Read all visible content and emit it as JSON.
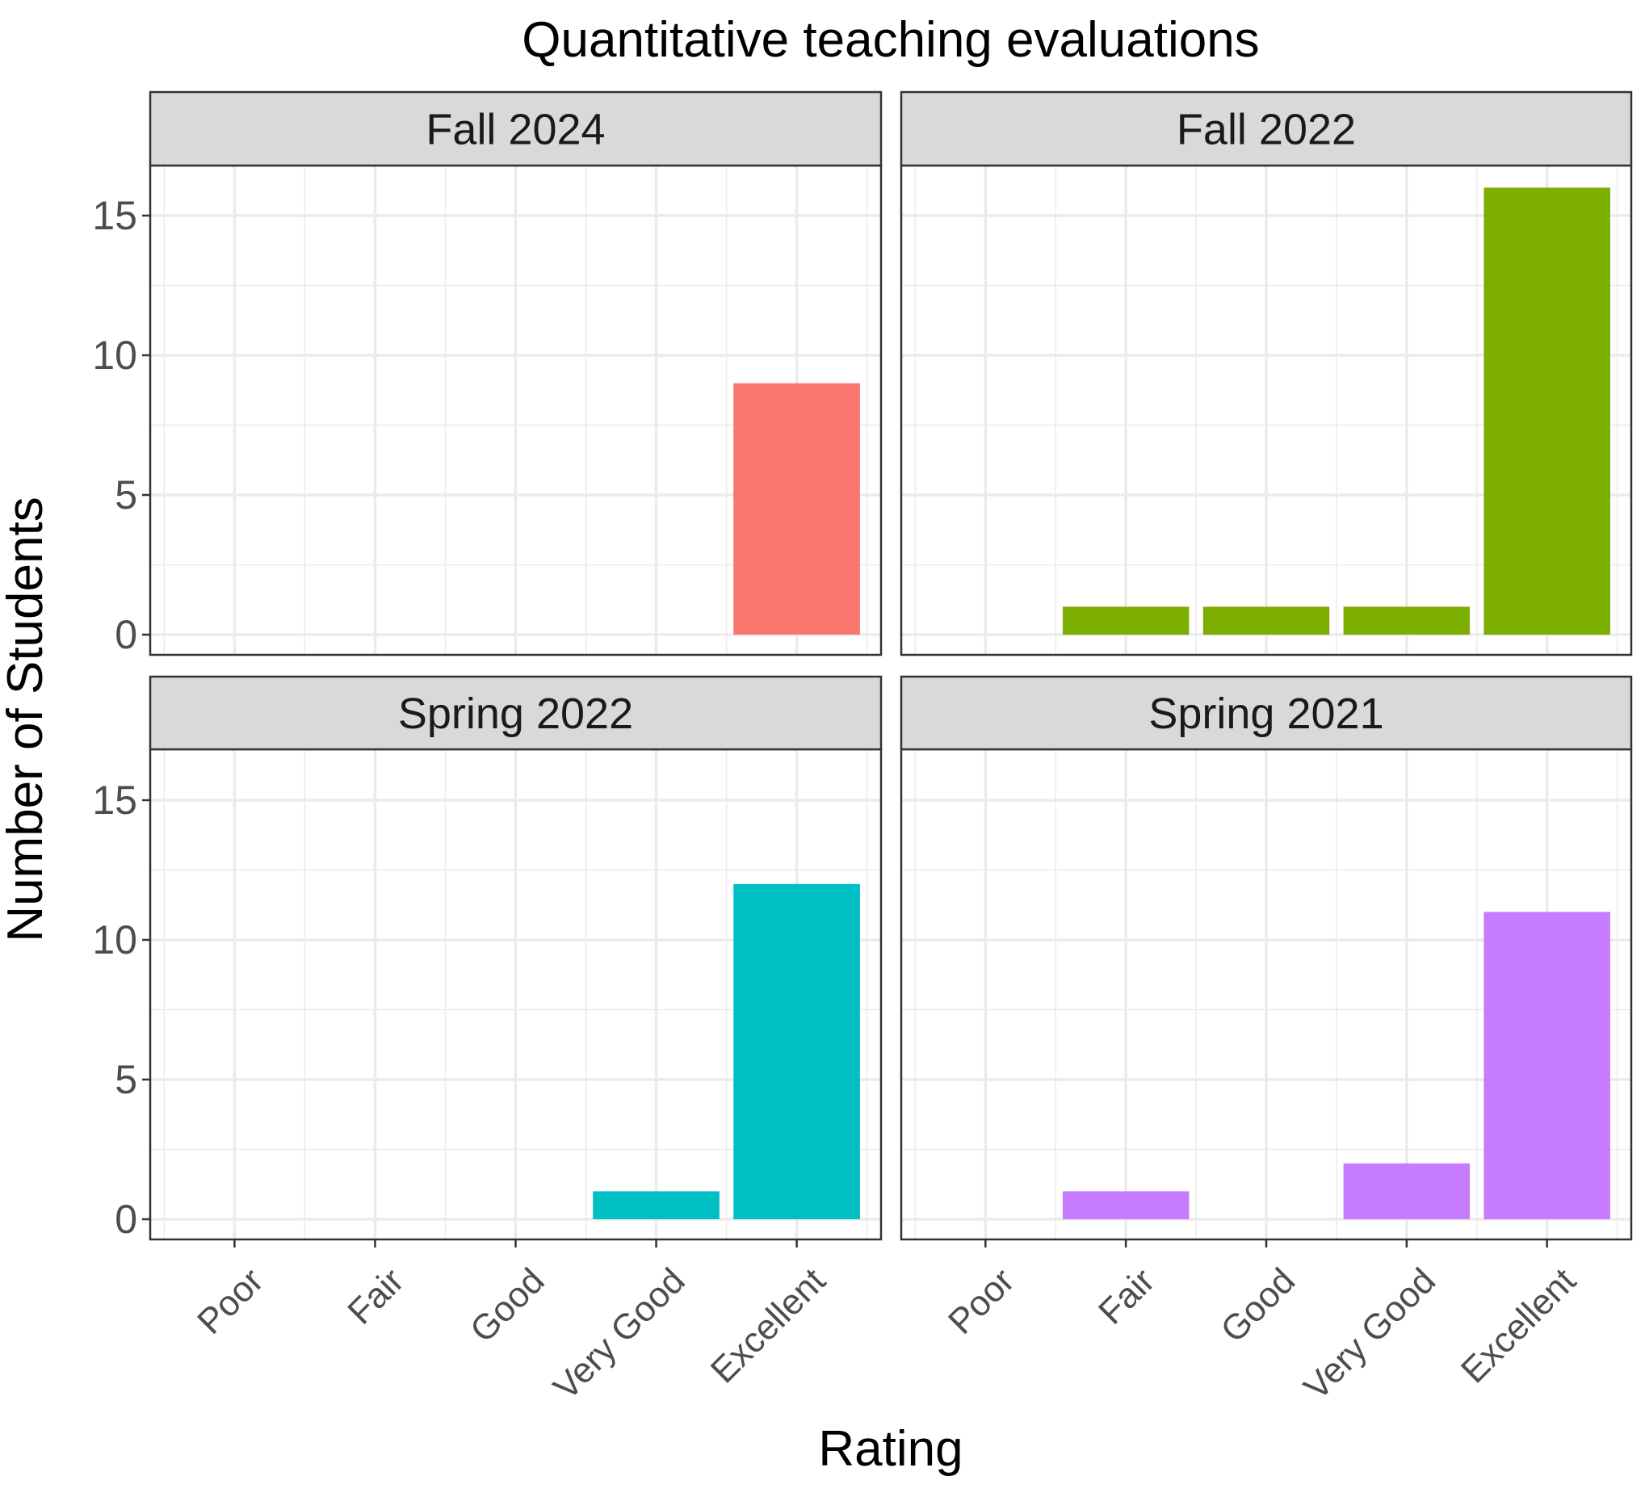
{
  "chart_data": {
    "type": "bar",
    "title": "Quantitative teaching evaluations",
    "xlabel": "Rating",
    "ylabel": "Number of Students",
    "categories": [
      "Poor",
      "Fair",
      "Good",
      "Very Good",
      "Excellent"
    ],
    "ylim": [
      0,
      16.8
    ],
    "yticks": [
      "0",
      "5",
      "10",
      "15"
    ],
    "grid": true,
    "legend": "none",
    "panel_background": "#ffffff",
    "strip_background": "#d9d9d9",
    "gridline_color": "#ebebeb",
    "panels": [
      {
        "name": "Fall 2024",
        "color": "#f8766d",
        "values": [
          0,
          0,
          0,
          0,
          9
        ]
      },
      {
        "name": "Fall 2022",
        "color": "#7cae00",
        "values": [
          0,
          1,
          1,
          1,
          16
        ]
      },
      {
        "name": "Spring 2022",
        "color": "#00bfc4",
        "values": [
          0,
          0,
          0,
          1,
          12
        ]
      },
      {
        "name": "Spring 2021",
        "color": "#c77cff",
        "values": [
          0,
          1,
          0,
          2,
          11
        ]
      }
    ]
  }
}
